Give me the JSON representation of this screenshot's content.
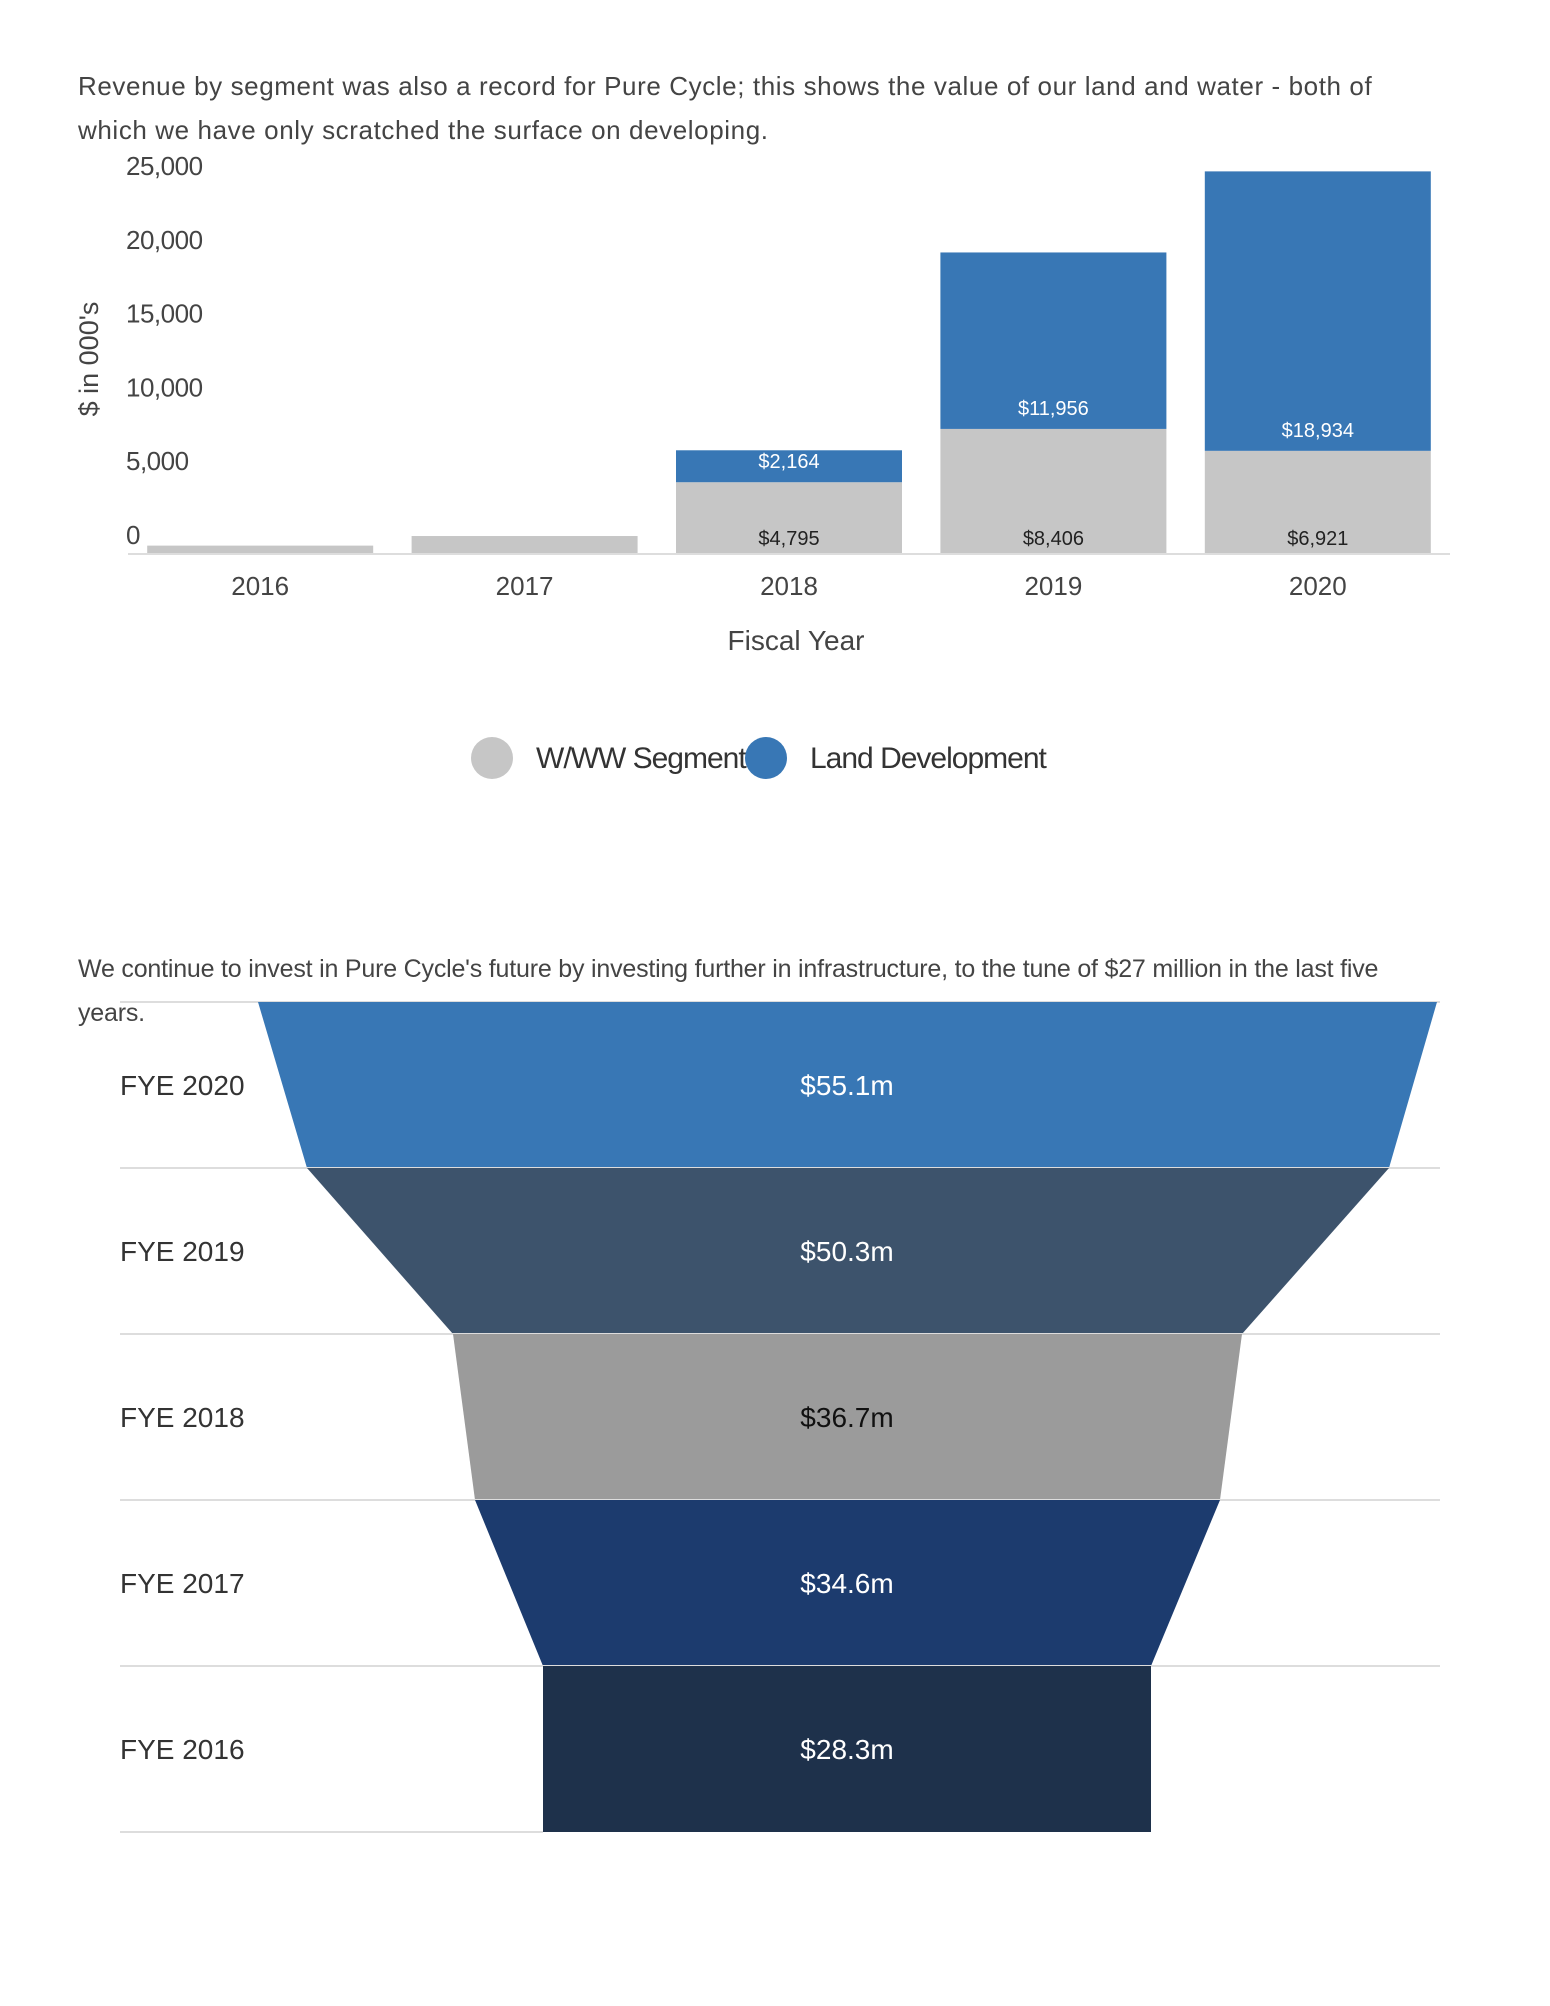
{
  "intro_text_1": "Revenue by segment was also a record for Pure Cycle; this shows the value of our land and water - both of which we have only scratched the surface on developing.",
  "intro_text_2": "We continue to invest in Pure Cycle's future by investing further in infrastructure, to the tune of $27 million in the last five years.",
  "colors": {
    "wwww": "#c6c6c6",
    "land": "#3877b5",
    "axis": "#dddddd",
    "funnel": [
      "#3877b5",
      "#3d536c",
      "#9b9b9b",
      "#1c3b6e",
      "#1e314b"
    ]
  },
  "chart_data": [
    {
      "type": "bar",
      "stacked": true,
      "categories": [
        "2016",
        "2017",
        "2018",
        "2019",
        "2020"
      ],
      "series": [
        {
          "name": "W/WW Segment",
          "values": [
            500,
            1150,
            4795,
            8406,
            6921
          ],
          "labels": [
            "",
            "",
            "$4,795",
            "$8,406",
            "$6,921"
          ]
        },
        {
          "name": "Land Development",
          "values": [
            0,
            0,
            2164,
            11956,
            18934
          ],
          "labels": [
            "",
            "",
            "$2,164",
            "$11,956",
            "$18,934"
          ]
        }
      ],
      "xlabel": "Fiscal Year",
      "ylabel": "$ in 000's",
      "ylim": [
        0,
        25000
      ],
      "yticks": [
        "0",
        "5,000",
        "10,000",
        "15,000",
        "20,000",
        "25,000"
      ],
      "ytick_values": [
        0,
        5000,
        10000,
        15000,
        20000,
        25000
      ],
      "grid": false,
      "legend": "bottom-center"
    },
    {
      "type": "funnel",
      "categories": [
        "FYE 2020",
        "FYE 2019",
        "FYE 2018",
        "FYE 2017",
        "FYE 2016"
      ],
      "values": [
        55.1,
        50.3,
        36.7,
        34.6,
        28.3
      ],
      "labels": [
        "$55.1m",
        "$50.3m",
        "$36.7m",
        "$34.6m",
        "$28.3m"
      ]
    }
  ]
}
